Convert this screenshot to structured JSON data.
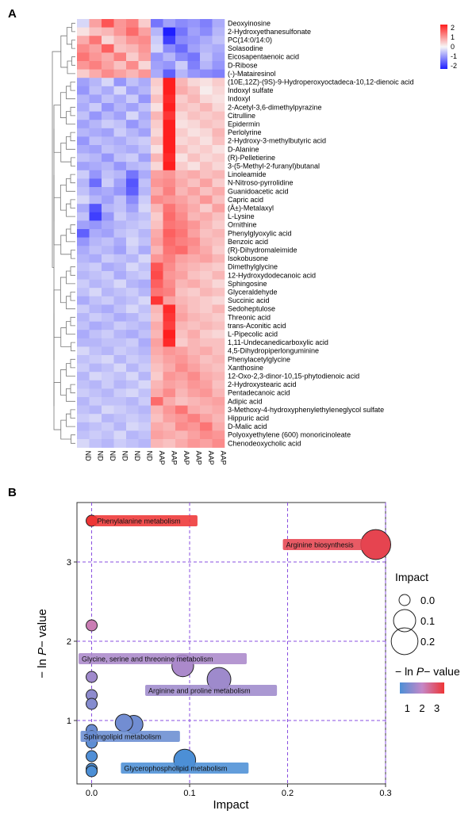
{
  "panels": {
    "a": "A",
    "b": "B"
  },
  "colors": {
    "low": "#1f1fff",
    "mid": "#f7f7f7",
    "high": "#ff1f1f",
    "bubble_low": "#4c8fd6",
    "bubble_mid": "#c488c8",
    "bubble_high": "#ee3535",
    "grid": "#8a4fe0"
  },
  "chart_data": [
    {
      "type": "heatmap",
      "colorbar": {
        "ticks": [
          "2",
          "1",
          "0",
          "-1",
          "-2"
        ],
        "range": [
          -2,
          2
        ]
      },
      "columns": [
        "ND",
        "ND",
        "ND",
        "ND",
        "ND",
        "ND",
        "AAP",
        "AAP",
        "AAP",
        "AAP",
        "AAP",
        "AAP"
      ],
      "rows": [
        {
          "label": "Deoxyinosine",
          "values": [
            -0.3,
            0.8,
            1.5,
            0.9,
            1.1,
            0.4,
            -1.2,
            -0.8,
            -1.0,
            -0.9,
            -1.1,
            -0.7
          ]
        },
        {
          "label": "2-Hydroxyethanesulfonate",
          "values": [
            0.2,
            0.5,
            0.6,
            0.9,
            1.3,
            0.8,
            -0.6,
            -2.0,
            -1.2,
            -0.8,
            -1.0,
            -0.6
          ]
        },
        {
          "label": "PC(14:0/14:0)",
          "values": [
            0.7,
            1.2,
            0.3,
            0.6,
            0.9,
            1.0,
            -0.4,
            -1.7,
            -1.0,
            -0.9,
            -0.7,
            -0.5
          ]
        },
        {
          "label": "Solasodine",
          "values": [
            1.0,
            0.8,
            1.4,
            0.5,
            0.6,
            0.9,
            -0.3,
            -1.0,
            -1.3,
            -0.8,
            -0.6,
            -0.7
          ]
        },
        {
          "label": "Eicosapentaenoic acid",
          "values": [
            1.2,
            0.9,
            0.7,
            1.1,
            0.4,
            0.8,
            -0.9,
            -0.6,
            -1.0,
            -1.2,
            -0.5,
            -0.8
          ]
        },
        {
          "label": "D-Ribose",
          "values": [
            0.9,
            1.1,
            0.8,
            0.5,
            1.0,
            0.3,
            -0.8,
            -0.9,
            -0.4,
            -1.1,
            -0.6,
            -0.9
          ]
        },
        {
          "label": "(-)-Matairesinol",
          "values": [
            0.4,
            0.7,
            1.0,
            0.8,
            0.6,
            0.9,
            -0.7,
            -1.4,
            -0.6,
            -0.9,
            -1.0,
            -1.1
          ]
        },
        {
          "label": "(10E,12Z)-(9S)-9-Hydroperoxyoctadeca-10,12-dienoic acid",
          "values": [
            -0.8,
            -0.6,
            -0.3,
            -0.9,
            -0.5,
            -0.7,
            0.4,
            2.0,
            0.6,
            0.3,
            0.2,
            0.4
          ]
        },
        {
          "label": "Indoxyl sulfate",
          "values": [
            -0.9,
            -0.5,
            -0.7,
            -0.3,
            -0.8,
            -0.6,
            0.3,
            2.1,
            0.7,
            0.5,
            0.1,
            0.3
          ]
        },
        {
          "label": "Indoxyl",
          "values": [
            -0.6,
            -0.8,
            -0.5,
            -0.7,
            -0.4,
            -0.9,
            0.5,
            1.9,
            0.4,
            0.6,
            0.3,
            0.2
          ]
        },
        {
          "label": "2-Acetyl-3,6-dimethylpyrazine",
          "values": [
            -0.7,
            -0.4,
            -0.9,
            -0.6,
            -0.8,
            -0.5,
            0.2,
            2.0,
            0.5,
            0.4,
            0.6,
            0.3
          ]
        },
        {
          "label": "Citrulline",
          "values": [
            -0.5,
            -0.9,
            -0.6,
            -0.8,
            -0.3,
            -0.7,
            0.6,
            1.8,
            0.3,
            0.5,
            0.4,
            0.5
          ]
        },
        {
          "label": "Epidermin",
          "values": [
            -0.8,
            -0.6,
            -0.4,
            -0.5,
            -0.9,
            -0.6,
            0.4,
            2.2,
            0.2,
            0.3,
            0.5,
            0.4
          ]
        },
        {
          "label": "Perlolyrine",
          "values": [
            -0.6,
            -0.7,
            -0.8,
            -0.4,
            -0.6,
            -0.8,
            0.3,
            2.1,
            0.4,
            0.2,
            0.3,
            0.6
          ]
        },
        {
          "label": "2-Hydroxy-3-methylbutyric acid",
          "values": [
            -0.9,
            -0.5,
            -0.6,
            -0.7,
            -0.5,
            -0.4,
            0.5,
            2.0,
            0.3,
            0.4,
            0.2,
            0.5
          ]
        },
        {
          "label": "D-Alanine",
          "values": [
            -0.7,
            -0.8,
            -0.5,
            -0.6,
            -0.7,
            -0.5,
            0.2,
            2.2,
            0.5,
            0.3,
            0.4,
            0.2
          ]
        },
        {
          "label": "(R)-Pelletierine",
          "values": [
            -0.5,
            -0.6,
            -0.9,
            -0.5,
            -0.4,
            -0.8,
            0.6,
            1.9,
            0.2,
            0.5,
            0.3,
            0.4
          ]
        },
        {
          "label": "3-(5-Methyl-2-furanyl)butanal",
          "values": [
            -0.8,
            -0.7,
            -0.6,
            -0.9,
            -0.6,
            -0.5,
            0.3,
            2.0,
            0.4,
            0.2,
            0.5,
            0.3
          ]
        },
        {
          "label": "Linoleamide",
          "values": [
            -0.4,
            -0.9,
            -0.5,
            -0.6,
            -1.2,
            -0.7,
            0.8,
            0.9,
            0.6,
            0.7,
            0.5,
            0.6
          ]
        },
        {
          "label": "N-Nitroso-pyrrolidine",
          "values": [
            -0.6,
            -1.3,
            -0.4,
            -0.8,
            -1.5,
            -0.5,
            0.9,
            1.0,
            0.7,
            0.5,
            0.8,
            0.4
          ]
        },
        {
          "label": "Guanidoacetic acid",
          "values": [
            -0.5,
            -0.8,
            -0.7,
            -0.9,
            -1.4,
            -0.6,
            0.7,
            1.1,
            0.6,
            0.8,
            0.5,
            0.7
          ]
        },
        {
          "label": "Capric acid",
          "values": [
            -0.3,
            -0.6,
            -0.8,
            -0.5,
            -1.0,
            -0.4,
            1.0,
            0.9,
            0.8,
            0.6,
            0.9,
            0.5
          ]
        },
        {
          "label": "(Â±)-Metalaxyl",
          "values": [
            -0.7,
            -1.5,
            -0.6,
            -0.5,
            -0.8,
            -0.3,
            0.6,
            1.2,
            0.9,
            0.7,
            0.4,
            0.8
          ]
        },
        {
          "label": "L-Lysine",
          "values": [
            -0.5,
            -1.7,
            -0.9,
            -0.4,
            -0.6,
            -0.5,
            0.4,
            1.3,
            1.0,
            0.6,
            0.7,
            0.5
          ]
        },
        {
          "label": "Ornithine",
          "values": [
            -0.8,
            -0.9,
            -0.7,
            -0.6,
            -0.5,
            -0.4,
            0.5,
            1.2,
            1.1,
            0.9,
            0.6,
            0.4
          ]
        },
        {
          "label": "Phenylglyoxylic acid",
          "values": [
            -1.4,
            -0.7,
            -0.8,
            -0.5,
            -0.4,
            -0.6,
            0.7,
            1.4,
            1.2,
            0.8,
            0.5,
            0.6
          ]
        },
        {
          "label": "Benzoic acid",
          "values": [
            -0.9,
            -0.6,
            -0.5,
            -0.7,
            -0.3,
            -0.5,
            0.8,
            1.3,
            1.1,
            1.0,
            0.6,
            0.5
          ]
        },
        {
          "label": "(R)-Dihydromaleimide",
          "values": [
            -0.7,
            -0.5,
            -0.6,
            -0.8,
            -0.4,
            -0.7,
            0.6,
            1.2,
            1.3,
            0.9,
            0.7,
            0.4
          ]
        },
        {
          "label": "Isokobusone",
          "values": [
            -0.6,
            -0.7,
            -0.4,
            -0.5,
            -0.6,
            -0.3,
            0.9,
            1.1,
            0.8,
            0.7,
            0.8,
            0.6
          ]
        },
        {
          "label": "Dimethylglycine",
          "values": [
            -0.5,
            -0.4,
            -0.7,
            -0.6,
            -0.3,
            -0.5,
            1.5,
            1.0,
            0.7,
            0.6,
            0.5,
            0.4
          ]
        },
        {
          "label": "12-Hydroxydodecanoic acid",
          "values": [
            -0.6,
            -0.5,
            -0.4,
            -0.7,
            -0.5,
            -0.4,
            1.6,
            0.9,
            0.8,
            0.5,
            0.4,
            0.6
          ]
        },
        {
          "label": "Sphingosine",
          "values": [
            -0.4,
            -0.6,
            -0.5,
            -0.3,
            -0.6,
            -0.7,
            1.4,
            1.0,
            0.6,
            0.7,
            0.5,
            0.3
          ]
        },
        {
          "label": "Glyceraldehyde",
          "values": [
            -0.5,
            -0.3,
            -0.6,
            -0.5,
            -0.4,
            -0.6,
            1.2,
            1.1,
            0.5,
            0.4,
            0.6,
            0.5
          ]
        },
        {
          "label": "Succinic acid",
          "values": [
            -0.7,
            -0.5,
            -0.4,
            -0.6,
            -0.5,
            -0.3,
            1.8,
            0.8,
            0.6,
            0.5,
            0.4,
            0.3
          ]
        },
        {
          "label": "Sedoheptulose",
          "values": [
            -0.4,
            -0.6,
            -0.7,
            -0.5,
            -0.3,
            -0.5,
            0.6,
            1.9,
            0.7,
            0.5,
            0.4,
            0.6
          ]
        },
        {
          "label": "Threonic acid",
          "values": [
            -0.6,
            -0.4,
            -0.5,
            -0.7,
            -0.6,
            -0.4,
            0.5,
            1.8,
            0.8,
            0.6,
            0.5,
            0.4
          ]
        },
        {
          "label": "trans-Aconitic acid",
          "values": [
            -0.5,
            -0.7,
            -0.6,
            -0.4,
            -0.5,
            -0.6,
            0.7,
            1.7,
            0.6,
            0.5,
            0.6,
            0.5
          ]
        },
        {
          "label": "L-Pipecolic acid",
          "values": [
            -0.7,
            -0.5,
            -0.4,
            -0.6,
            -0.7,
            -0.5,
            0.6,
            2.0,
            0.5,
            0.7,
            0.4,
            0.3
          ]
        },
        {
          "label": "1,11-Undecanedicarboxylic acid",
          "values": [
            -0.6,
            -0.6,
            -0.5,
            -0.5,
            -0.4,
            -0.7,
            0.8,
            1.9,
            0.4,
            0.6,
            0.5,
            0.5
          ]
        },
        {
          "label": "4,5-Dihydropiperlonguminine",
          "values": [
            -0.3,
            -0.5,
            -0.6,
            -0.4,
            -0.5,
            -0.6,
            0.7,
            0.9,
            0.8,
            0.6,
            0.7,
            0.5
          ]
        },
        {
          "label": "Phenylacetylglycine",
          "values": [
            -0.5,
            -0.4,
            -0.3,
            -0.6,
            -0.4,
            -0.5,
            0.6,
            0.8,
            0.9,
            0.7,
            0.5,
            0.6
          ]
        },
        {
          "label": "Xanthosine",
          "values": [
            -0.4,
            -0.6,
            -0.5,
            -0.3,
            -0.6,
            -0.4,
            0.5,
            0.7,
            1.0,
            0.8,
            0.6,
            0.5
          ]
        },
        {
          "label": "12-Oxo-2,3-dinor-10,15-phytodienoic acid",
          "values": [
            -0.6,
            -0.3,
            -0.4,
            -0.5,
            -0.3,
            -0.6,
            0.4,
            0.9,
            0.8,
            1.0,
            0.7,
            0.6
          ]
        },
        {
          "label": "2-Hydroxystearic acid",
          "values": [
            -0.5,
            -0.6,
            -0.4,
            -0.6,
            -0.5,
            -0.3,
            0.6,
            0.8,
            0.7,
            0.9,
            0.8,
            0.5
          ]
        },
        {
          "label": "Pentadecanoic acid",
          "values": [
            -0.4,
            -0.5,
            -0.6,
            -0.4,
            -0.3,
            -0.5,
            0.7,
            1.0,
            0.6,
            0.8,
            0.9,
            0.6
          ]
        },
        {
          "label": "Adipic acid",
          "values": [
            -0.6,
            -0.4,
            -0.5,
            -0.5,
            -0.6,
            -0.4,
            1.3,
            0.7,
            0.5,
            0.6,
            0.7,
            0.8
          ]
        },
        {
          "label": "3-Methoxy-4-hydroxyphenylethyleneglycol sulfate",
          "values": [
            -0.5,
            -0.6,
            -0.3,
            -0.4,
            -0.5,
            -0.6,
            0.6,
            0.9,
            1.2,
            0.7,
            0.6,
            0.7
          ]
        },
        {
          "label": "Hippuric acid",
          "values": [
            -0.4,
            -0.3,
            -0.6,
            -0.5,
            -0.4,
            -0.5,
            0.5,
            0.8,
            0.9,
            1.1,
            0.8,
            0.6
          ]
        },
        {
          "label": "D-Malic acid",
          "values": [
            -0.6,
            -0.5,
            -0.4,
            -0.6,
            -0.3,
            -0.4,
            0.7,
            0.6,
            1.0,
            0.9,
            1.2,
            0.7
          ]
        },
        {
          "label": "Polyoxyethylene (600) monoricinoleate",
          "values": [
            -0.5,
            -0.4,
            -0.5,
            -0.3,
            -0.6,
            -0.5,
            0.8,
            0.7,
            0.6,
            0.8,
            1.0,
            0.9
          ]
        },
        {
          "label": "Chenodeoxycholic acid",
          "values": [
            -0.3,
            -0.5,
            -0.6,
            -0.4,
            -0.5,
            -0.6,
            0.6,
            0.5,
            0.7,
            0.9,
            0.8,
            1.0
          ]
        }
      ]
    },
    {
      "type": "scatter",
      "xlabel": "Impact",
      "ylabel_prefix": "− ln ",
      "ylabel_italic": "P",
      "ylabel_suffix": "− value",
      "xlim": [
        -0.015,
        0.3
      ],
      "ylim": [
        0.2,
        3.75
      ],
      "x_ticks": [
        0.0,
        0.1,
        0.2,
        0.3
      ],
      "x_tick_labels": [
        "0.0",
        "0.1",
        "0.2",
        "0.3"
      ],
      "y_ticks": [
        1,
        2,
        3
      ],
      "y_tick_labels": [
        "1",
        "2",
        "3"
      ],
      "grid": true,
      "size_legend": {
        "title": "Impact",
        "values": [
          0.0,
          0.1,
          0.2
        ],
        "labels": [
          "0.0",
          "0.1",
          "0.2"
        ]
      },
      "color_legend": {
        "title_prefix": "− ln ",
        "title_italic": "P",
        "title_suffix": "− value",
        "ticks": [
          1,
          2,
          3
        ],
        "labels": [
          "1",
          "2",
          "3"
        ],
        "range": [
          0.5,
          3.5
        ]
      },
      "points": [
        {
          "x": 0.0,
          "y": 3.52,
          "label": "Phenylalanine metabolism"
        },
        {
          "x": 0.29,
          "y": 3.22,
          "label": "Arginine biosynthesis"
        },
        {
          "x": 0.0,
          "y": 2.2,
          "label": ""
        },
        {
          "x": 0.093,
          "y": 1.69,
          "label": "Glycine, serine and threonine metabolism"
        },
        {
          "x": 0.0,
          "y": 1.55,
          "label": ""
        },
        {
          "x": 0.13,
          "y": 1.52,
          "label": "Arginine and proline metabolism"
        },
        {
          "x": 0.0,
          "y": 1.32,
          "label": ""
        },
        {
          "x": 0.0,
          "y": 1.21,
          "label": ""
        },
        {
          "x": 0.033,
          "y": 0.97,
          "label": ""
        },
        {
          "x": 0.043,
          "y": 0.95,
          "label": ""
        },
        {
          "x": 0.0,
          "y": 0.88,
          "label": "Sphingolipid metabolism"
        },
        {
          "x": 0.0,
          "y": 0.8,
          "label": ""
        },
        {
          "x": 0.0,
          "y": 0.72,
          "label": ""
        },
        {
          "x": 0.095,
          "y": 0.5,
          "label": "Glycerophospholipid metabolism"
        },
        {
          "x": 0.0,
          "y": 0.55,
          "label": ""
        },
        {
          "x": 0.0,
          "y": 0.39,
          "label": ""
        },
        {
          "x": 0.0,
          "y": 0.36,
          "label": ""
        }
      ]
    }
  ]
}
